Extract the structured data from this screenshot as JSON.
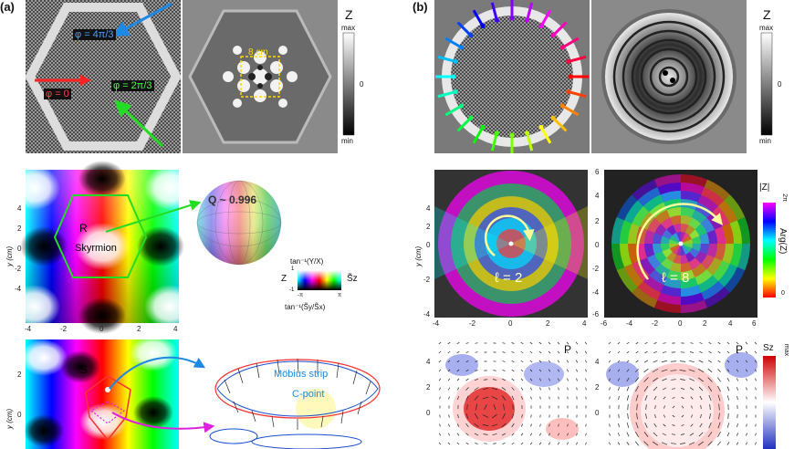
{
  "panel_a": {
    "label": "(a)",
    "phase_labels": [
      "φ = 4π/3",
      "φ = 0",
      "φ = 2π/3"
    ],
    "dash_box_label": "8 cm",
    "cbar": {
      "title": "Z",
      "max": "max",
      "mid": "0",
      "min": "min"
    },
    "skyrmion": {
      "point": "R",
      "name": "Skyrmion"
    },
    "sphere_label": "Q ~ 0.996",
    "colorkey": {
      "top": "tan⁻¹(Y/X)",
      "left": "Z",
      "right": "S̃z",
      "one": "1",
      "neg_one": "-1",
      "neg_pi": "-π",
      "pi": "π",
      "bottom": "tan⁻¹(S̃y/S̃x)"
    },
    "lower_point": "S",
    "mobius": "Möbius strip",
    "cpoint": "C-point",
    "ylabel": "y (cm)",
    "yticks": [
      "4",
      "2",
      "0",
      "-2",
      "-4"
    ],
    "xticks": [
      "-4",
      "-2",
      "0",
      "2",
      "4"
    ],
    "yticks_lower": [
      "2",
      "0"
    ]
  },
  "panel_b": {
    "label": "(b)",
    "cbar": {
      "title": "Z",
      "max": "max",
      "mid": "0",
      "min": "min"
    },
    "l2": "ℓ = 2",
    "l8": "ℓ = 8",
    "abs_label": "|Z|",
    "arg_label": "Arg(Z)",
    "two_pi": "2π",
    "zero": "0",
    "ylabel": "y (cm)",
    "yticks": [
      "4",
      "2",
      "0",
      "-2",
      "-4"
    ],
    "xticks_left": [
      "-4",
      "-2",
      "0",
      "2",
      "4"
    ],
    "xticks_right": [
      "-6",
      "-4",
      "-2",
      "0",
      "2",
      "4",
      "6"
    ],
    "yticks_right": [
      "6",
      "4",
      "2",
      "0",
      "-2",
      "-4",
      "-6"
    ],
    "yticks_lower": [
      "4",
      "2",
      "0"
    ],
    "p_label": "P",
    "sz_label": "Sz",
    "sz_max": "max"
  }
}
